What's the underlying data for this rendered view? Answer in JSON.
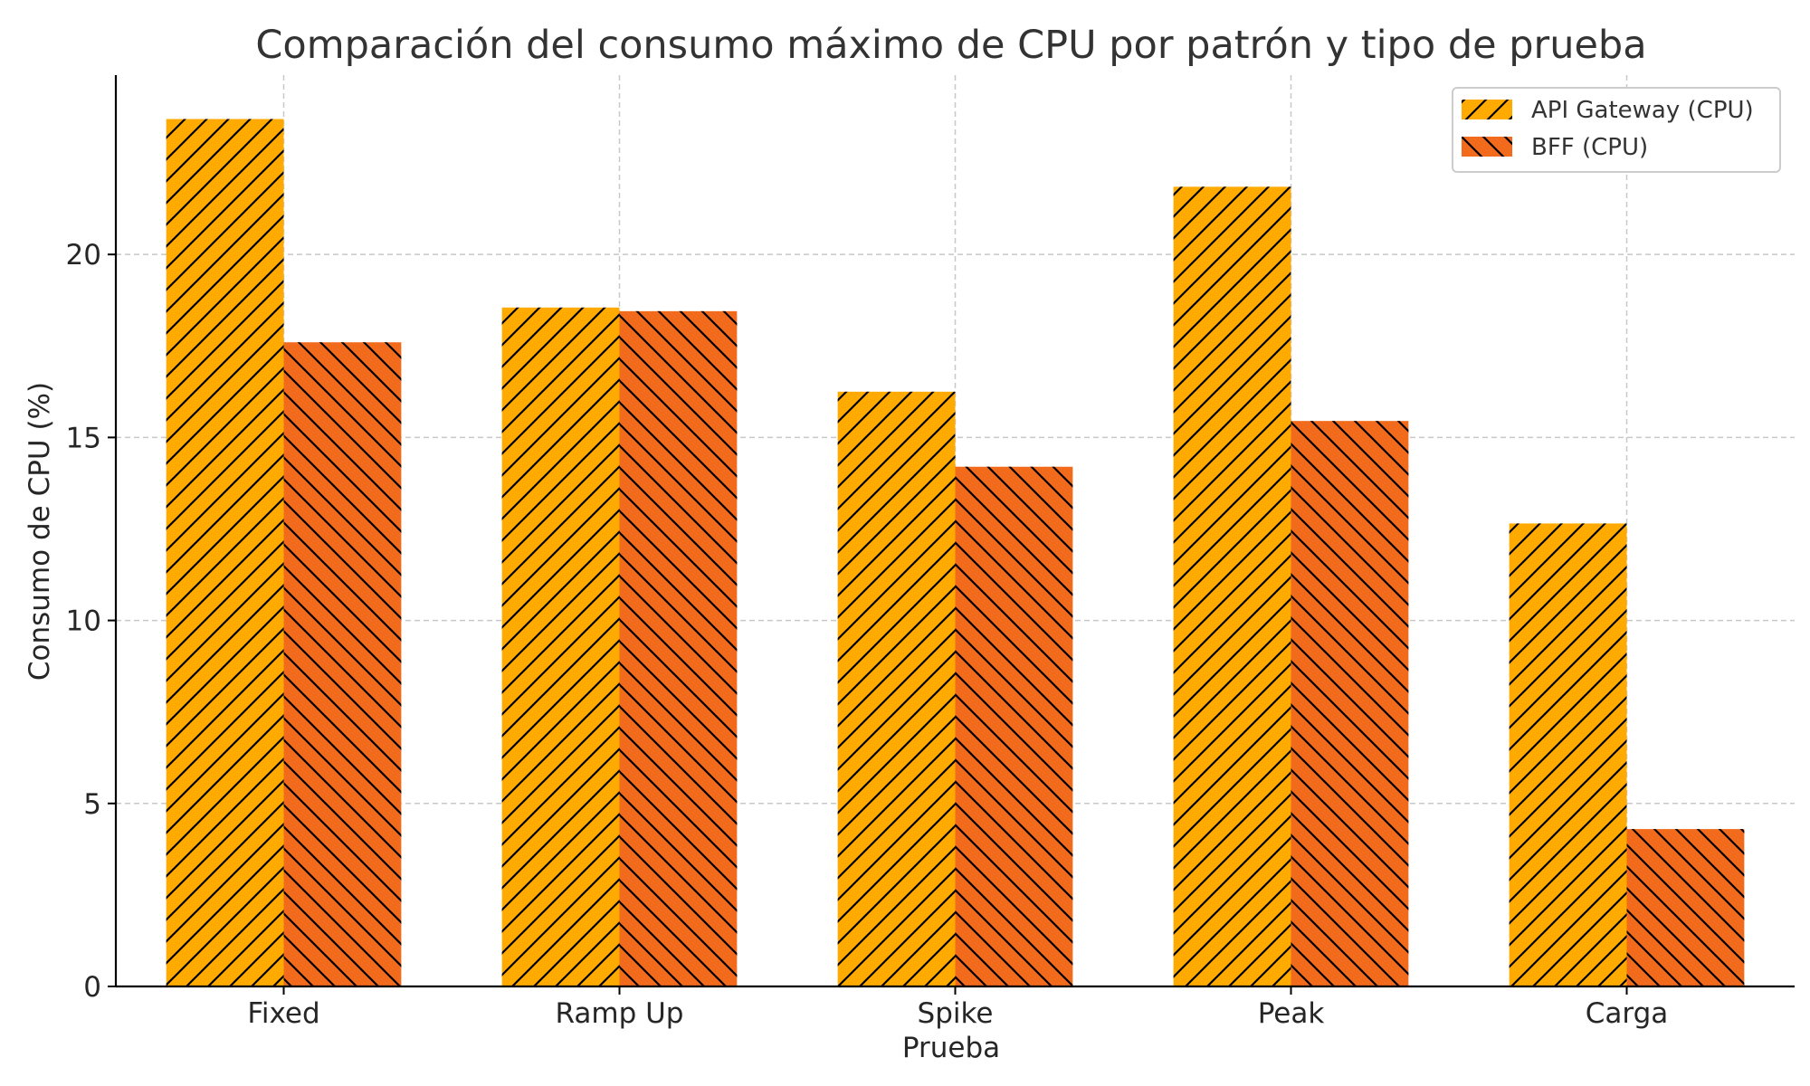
{
  "chart_data": {
    "type": "bar",
    "title": "Comparación del consumo máximo de CPU por patrón y tipo de prueba",
    "xlabel": "Prueba",
    "ylabel": "Consumo de CPU (%)",
    "categories": [
      "Fixed",
      "Ramp Up",
      "Spike",
      "Peak",
      "Carga"
    ],
    "series": [
      {
        "name": "API Gateway (CPU)",
        "values": [
          23.7,
          18.55,
          16.25,
          21.85,
          12.65
        ],
        "color": "#FFAA00",
        "hatch": "forward-diagonal"
      },
      {
        "name": "BFF (CPU)",
        "values": [
          17.6,
          18.45,
          14.2,
          15.45,
          4.3
        ],
        "color": "#F26A1B",
        "hatch": "back-diagonal"
      }
    ],
    "ylim": [
      0,
      24.9
    ],
    "yticks": [
      0,
      5,
      10,
      15,
      20
    ],
    "grid": true,
    "legend_position": "top-right"
  }
}
